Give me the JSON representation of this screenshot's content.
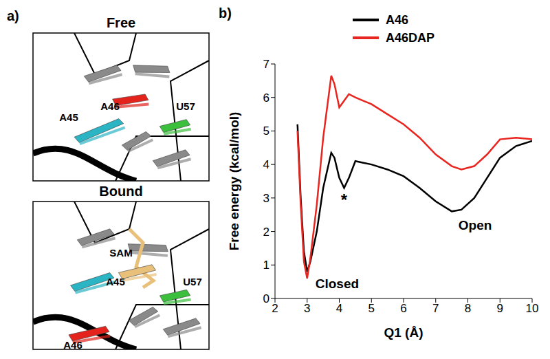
{
  "panels": {
    "a": {
      "label": "a)",
      "views": [
        {
          "title": "Free",
          "labels": [
            {
              "text": "A46",
              "color": "#e3231c"
            },
            {
              "text": "A45",
              "color": "#2bb5c4"
            },
            {
              "text": "U57",
              "color": "#3cbf3c"
            }
          ]
        },
        {
          "title": "Bound",
          "labels": [
            {
              "text": "SAM",
              "color": "#e8c07a"
            },
            {
              "text": "A45",
              "color": "#2bb5c4"
            },
            {
              "text": "U57",
              "color": "#3cbf3c"
            },
            {
              "text": "A46",
              "color": "#e3231c"
            }
          ]
        }
      ]
    },
    "b": {
      "label": "b)"
    }
  },
  "chart_data": {
    "type": "line",
    "x_label": "Q1 (Å)",
    "y_label": "Free energy (kcal/mol)",
    "xlim": [
      2,
      10
    ],
    "xticks": [
      2,
      3,
      4,
      5,
      6,
      7,
      8,
      9,
      10
    ],
    "ylim": [
      0,
      7
    ],
    "yticks": [
      0,
      1,
      2,
      3,
      4,
      5,
      6,
      7
    ],
    "grid": false,
    "legend": "top",
    "x": [
      2.7,
      2.8,
      2.9,
      3.0,
      3.1,
      3.3,
      3.5,
      3.75,
      3.85,
      4.0,
      4.15,
      4.3,
      4.5,
      4.75,
      5,
      5.5,
      6,
      6.5,
      7,
      7.5,
      7.8,
      8.2,
      8.6,
      9,
      9.5,
      10
    ],
    "series": [
      {
        "name": "A46",
        "color": "#000000",
        "values": [
          5.2,
          3.0,
          1.4,
          0.8,
          1.1,
          2.0,
          3.3,
          4.35,
          4.2,
          3.6,
          3.3,
          3.6,
          4.1,
          4.05,
          4.0,
          3.85,
          3.65,
          3.3,
          2.9,
          2.6,
          2.65,
          3.0,
          3.6,
          4.2,
          4.55,
          4.7
        ]
      },
      {
        "name": "A46DAP",
        "color": "#e8251f",
        "values": [
          5.0,
          2.8,
          1.1,
          0.6,
          1.2,
          2.8,
          4.8,
          6.65,
          6.4,
          5.7,
          5.9,
          6.1,
          6.0,
          5.9,
          5.8,
          5.5,
          5.2,
          4.8,
          4.3,
          3.95,
          3.85,
          3.95,
          4.3,
          4.75,
          4.8,
          4.75
        ]
      }
    ],
    "annotations": [
      {
        "text": "*",
        "x": 4.15,
        "y": 2.95
      },
      {
        "text": "Closed",
        "x": 3.15,
        "y": 0.45
      },
      {
        "text": "Open",
        "x": 7.6,
        "y": 2.2
      }
    ]
  }
}
